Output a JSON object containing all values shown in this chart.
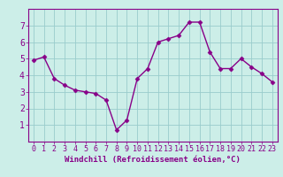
{
  "x": [
    0,
    1,
    2,
    3,
    4,
    5,
    6,
    7,
    8,
    9,
    10,
    11,
    12,
    13,
    14,
    15,
    16,
    17,
    18,
    19,
    20,
    21,
    22,
    23
  ],
  "y": [
    4.9,
    5.1,
    3.8,
    3.4,
    3.1,
    3.0,
    2.9,
    2.5,
    0.7,
    1.3,
    3.8,
    4.4,
    6.0,
    6.2,
    6.4,
    7.2,
    7.2,
    5.4,
    4.4,
    4.4,
    5.0,
    4.5,
    4.1,
    3.6
  ],
  "line_color": "#880088",
  "marker": "D",
  "markersize": 2.5,
  "linewidth": 1.0,
  "bg_color": "#cceee8",
  "grid_color": "#99cccc",
  "xlabel": "Windchill (Refroidissement éolien,°C)",
  "ylabel": "",
  "xlim": [
    -0.5,
    23.5
  ],
  "ylim": [
    0,
    8
  ],
  "yticks": [
    1,
    2,
    3,
    4,
    5,
    6,
    7
  ],
  "xticks": [
    0,
    1,
    2,
    3,
    4,
    5,
    6,
    7,
    8,
    9,
    10,
    11,
    12,
    13,
    14,
    15,
    16,
    17,
    18,
    19,
    20,
    21,
    22,
    23
  ],
  "tick_color": "#880088",
  "label_color": "#880088",
  "axis_color": "#880088",
  "tick_fontsize": 6,
  "ylabel_fontsize": 7,
  "xlabel_fontsize": 6.5
}
